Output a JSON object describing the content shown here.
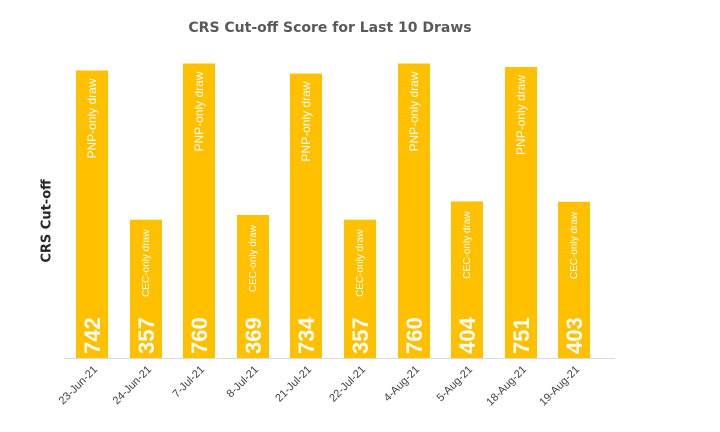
{
  "chart_data": {
    "type": "bar",
    "title": "CRS Cut-off Score for Last 10 Draws",
    "xlabel": "",
    "ylabel": "CRS Cut-off",
    "ylim": [
      0,
      800
    ],
    "grid": false,
    "legend": "none",
    "bar_color": "#FFC000",
    "label_color": "#ffffff",
    "axis_color": "#d9d9d9",
    "categories": [
      "23-Jun-21",
      "24-Jun-21",
      "7-Jul-21",
      "8-Jul-21",
      "21-Jul-21",
      "22-Jul-21",
      "4-Aug-21",
      "5-Aug-21",
      "18-Aug-21",
      "19-Aug-21"
    ],
    "values": [
      742,
      357,
      760,
      369,
      734,
      357,
      760,
      404,
      751,
      403
    ],
    "value_labels": [
      "742",
      "357",
      "760",
      "369",
      "734",
      "357",
      "760",
      "404",
      "751",
      "403"
    ],
    "annotations": [
      "PNP-only draw",
      "CEC-only draw",
      "PNP-only draw",
      "CEC-only draw",
      "PNP-only draw",
      "CEC-only draw",
      "PNP-only draw",
      "CEC-only draw",
      "PNP-only draw",
      "CEC-only draw"
    ]
  }
}
